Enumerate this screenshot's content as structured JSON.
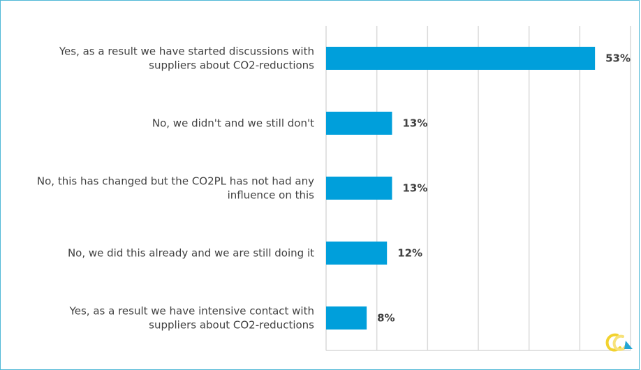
{
  "chart_data": {
    "type": "bar",
    "orientation": "horizontal",
    "categories": [
      [
        "Yes, as a result we have started discussions with",
        "suppliers about CO2-reductions"
      ],
      [
        "No, we didn't and we still don't"
      ],
      [
        "No, this has changed but the CO2PL has not had any",
        "influence on this"
      ],
      [
        "No, we did this already and we are still doing it"
      ],
      [
        "Yes, as a result we have intensive contact with",
        "suppliers about CO2-reductions"
      ]
    ],
    "values": [
      53,
      13,
      13,
      12,
      8
    ],
    "value_labels": [
      "53%",
      "13%",
      "13%",
      "12%",
      "8%"
    ],
    "xlim": [
      0,
      60
    ],
    "grid": true,
    "bar_color": "#009fdb",
    "grid_color": "#d9d9d9"
  }
}
